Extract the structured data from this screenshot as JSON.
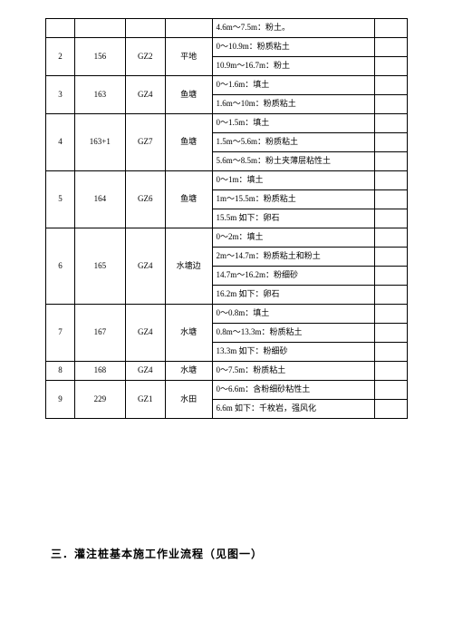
{
  "table": {
    "text_color": "#000000",
    "border_color": "#000000",
    "font_size_pt": 9,
    "rows": [
      {
        "c1": "",
        "c2": "",
        "c3": "",
        "c4": "",
        "r1": null,
        "r3": null,
        "desc": "4.6m～7.5m：粉土。"
      },
      {
        "c1": "2",
        "c2": "156",
        "c3": "GZ2",
        "c4": "平地",
        "r1": 2,
        "desc": "0～10.9m：粉质粘土"
      },
      {
        "desc": "10.9m～16.7m：粉土"
      },
      {
        "c1": "3",
        "c2": "163",
        "c3": "GZ4",
        "c4": "鱼塘",
        "r1": 2,
        "desc": "0～1.6m：填土"
      },
      {
        "desc": "1.6m～10m：粉质粘土"
      },
      {
        "c1": "4",
        "c2": "163+1",
        "c3": "GZ7",
        "c4": "鱼塘",
        "r1": 3,
        "desc": "0～1.5m：填土"
      },
      {
        "desc": "1.5m～5.6m：粉质粘土"
      },
      {
        "desc": "5.6m～8.5m：粉土夹薄层粘性土"
      },
      {
        "c1": "5",
        "c2": "164",
        "c3": "GZ6",
        "c4": "鱼塘",
        "r1": 3,
        "desc": "0～1m：填土"
      },
      {
        "desc": "1m～15.5m：粉质粘土"
      },
      {
        "desc": "15.5m 如下：卵石"
      },
      {
        "c1": "6",
        "c2": "165",
        "c3": "GZ4",
        "c4": "水塘边",
        "r1": 4,
        "desc": "0～2m：填土"
      },
      {
        "desc": "2m～14.7m：粉质粘土和粉土"
      },
      {
        "desc": "14.7m～16.2m：粉细砂"
      },
      {
        "desc": "16.2m 如下：卵石"
      },
      {
        "c1": "7",
        "c2": "167",
        "c3": "GZ4",
        "c4": "水塘",
        "r1": 3,
        "desc": "0～0.8m：填土"
      },
      {
        "desc": "0.8m～13.3m：粉质粘土"
      },
      {
        "desc": "13.3m 如下：粉细砂"
      },
      {
        "c1": "8",
        "c2": "168",
        "c3": "GZ4",
        "c4": "水塘",
        "r1": 1,
        "desc": "0～7.5m：粉质粘土"
      },
      {
        "c1": "9",
        "c2": "229",
        "c3": "GZ1",
        "c4": "水田",
        "r1": 2,
        "desc": "0～6.6m：含粉细砂粘性土"
      },
      {
        "desc": "6.6m 如下：千枚岩，强风化"
      }
    ]
  },
  "heading": "三．灌注桩基本施工作业流程（见图一）"
}
